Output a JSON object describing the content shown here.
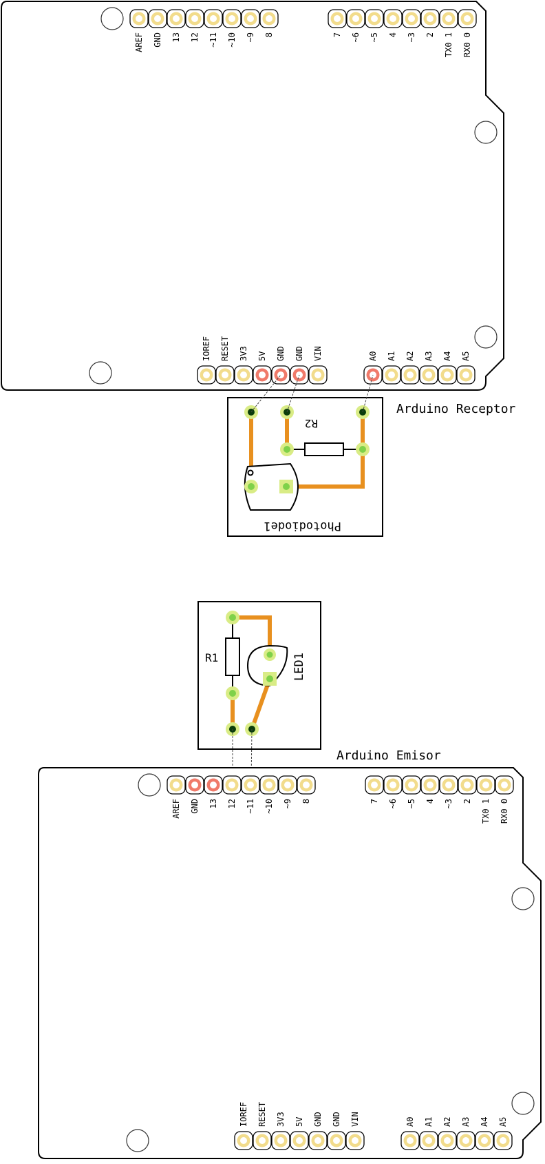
{
  "receptor": {
    "title": "Arduino Receptor",
    "top_left_labels": [
      "AREF",
      "GND",
      "13",
      "12",
      "~11",
      "~10",
      "~9",
      "8"
    ],
    "top_right_labels": [
      "7",
      "~6",
      "~5",
      "4",
      "~3",
      "2",
      "TX0 1",
      "RX0 0"
    ],
    "bottom_left_labels": [
      "IOREF",
      "RESET",
      "3V3",
      "5V",
      "GND",
      "GND",
      "VIN"
    ],
    "bottom_right_labels": [
      "A0",
      "A1",
      "A2",
      "A3",
      "A4",
      "A5"
    ],
    "resistor": "R2",
    "sensor": "Photodiode1"
  },
  "emisor": {
    "title": "Arduino Emisor",
    "top_left_labels": [
      "AREF",
      "GND",
      "13",
      "12",
      "~11",
      "~10",
      "~9",
      "8"
    ],
    "top_right_labels": [
      "7",
      "~6",
      "~5",
      "4",
      "~3",
      "2",
      "TX0 1",
      "RX0 0"
    ],
    "bottom_left_labels": [
      "IOREF",
      "RESET",
      "3V3",
      "5V",
      "GND",
      "GND",
      "VIN"
    ],
    "bottom_right_labels": [
      "A0",
      "A1",
      "A2",
      "A3",
      "A4",
      "A5"
    ],
    "resistor": "R1",
    "led": "LED1"
  },
  "colors": {
    "trace": "#e8901f",
    "header_ring": "#f2dc8c",
    "pin_active": "#f07a6a",
    "pad_green": "#7fd14a",
    "pad_ring": "#d9ec86"
  }
}
